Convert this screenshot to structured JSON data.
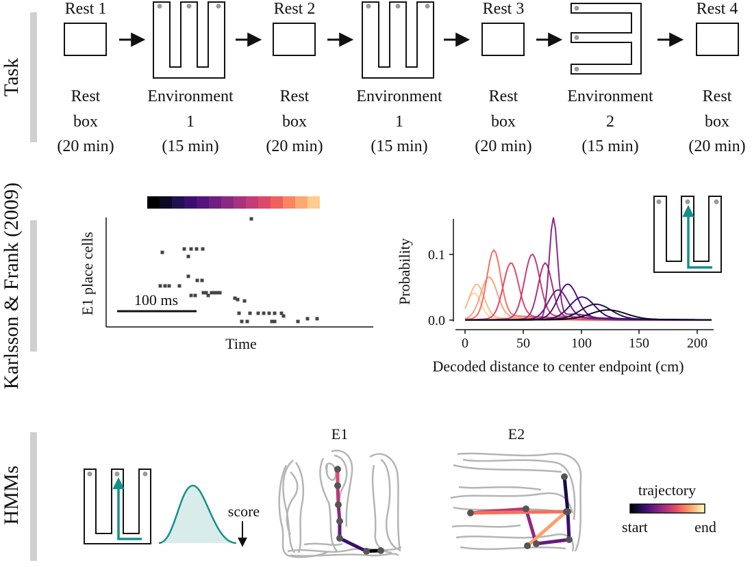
{
  "rows": {
    "task": "Task",
    "kf": "Karlsson & Frank (2009)",
    "hmm": "HMMs"
  },
  "task": {
    "stages": [
      {
        "title": "Rest 1",
        "lines": [
          "Rest",
          "box",
          "(20 min)"
        ],
        "shape": "box"
      },
      {
        "title": "",
        "lines": [
          "Environment",
          "1",
          "(15 min)"
        ],
        "shape": "w-maze"
      },
      {
        "title": "Rest 2",
        "lines": [
          "Rest",
          "box",
          "(20 min)"
        ],
        "shape": "box"
      },
      {
        "title": "",
        "lines": [
          "Environment",
          "1",
          "(15 min)"
        ],
        "shape": "w-maze"
      },
      {
        "title": "Rest 3",
        "lines": [
          "Rest",
          "box",
          "(20 min)"
        ],
        "shape": "box"
      },
      {
        "title": "",
        "lines": [
          "Environment",
          "2",
          "(15 min)"
        ],
        "shape": "e-maze"
      },
      {
        "title": "Rest 4",
        "lines": [
          "Rest",
          "box",
          "(20 min)"
        ],
        "shape": "box"
      }
    ]
  },
  "raster": {
    "ylabel": "E1 place cells",
    "xlabel": "Time",
    "scalebar": "100 ms"
  },
  "probability_plot": {
    "ylabel": "Probability",
    "xlabel": "Decoded distance to center endpoint (cm)",
    "xticks": [
      "0",
      "50",
      "100",
      "150",
      "200"
    ],
    "yticks": [
      "0.0",
      "0.1"
    ]
  },
  "hmm": {
    "score_label": "score",
    "e1_label": "E1",
    "e2_label": "E2",
    "colorbar_title": "trajectory",
    "colorbar_start": "start",
    "colorbar_end": "end"
  },
  "colors": {
    "teal": "#13908a",
    "gray_path": "#b4b4b4",
    "magma": [
      "#000004",
      "#140e36",
      "#3b0f70",
      "#641a80",
      "#8c2981",
      "#b73779",
      "#de4968",
      "#f7705c",
      "#fe9f6d",
      "#fecf92",
      "#fcfdbf"
    ]
  }
}
